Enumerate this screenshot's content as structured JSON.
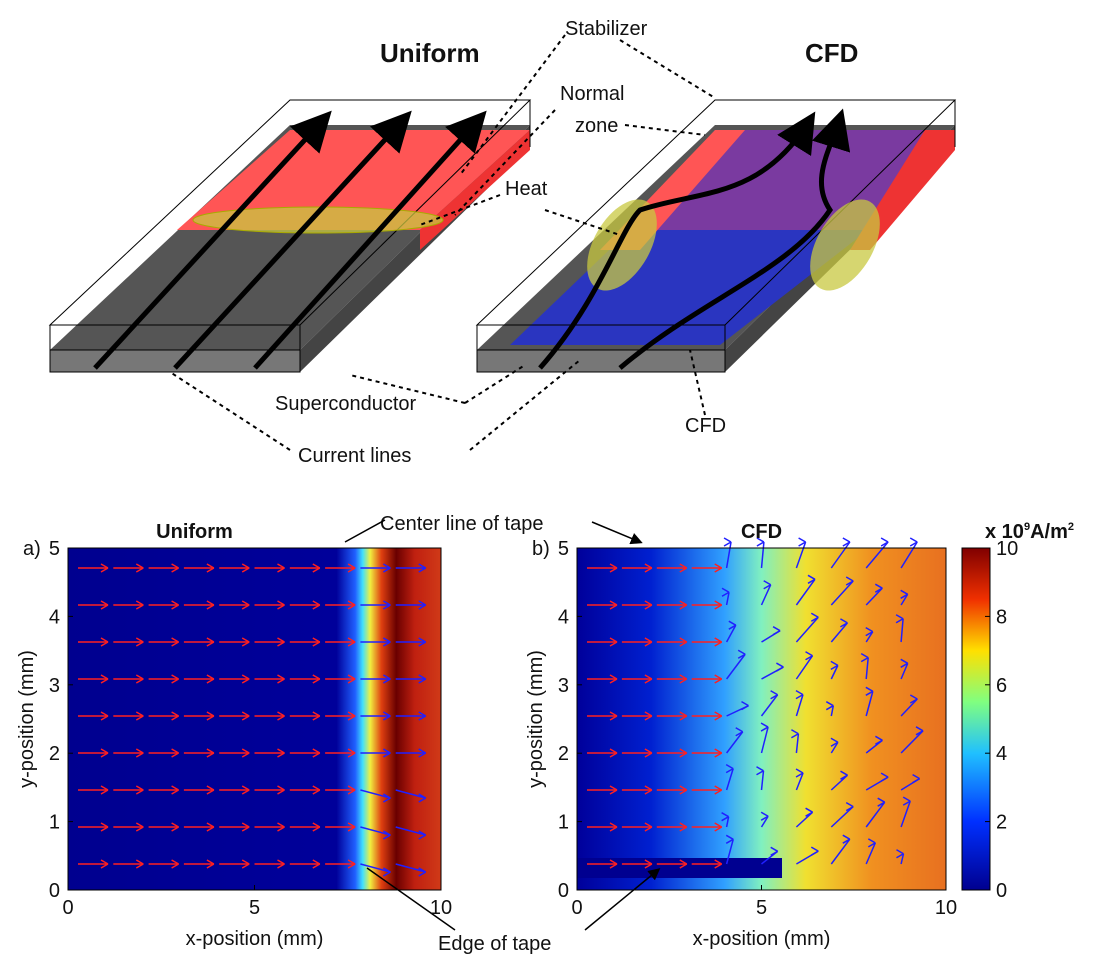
{
  "diagram": {
    "titles": [
      "Uniform",
      "CFD"
    ],
    "labels": {
      "stabilizer": "Stabilizer",
      "normal_zone": [
        "Normal",
        "zone"
      ],
      "heat": "Heat",
      "superconductor": "Superconductor",
      "current_lines": "Current lines",
      "cfd": "CFD"
    }
  },
  "annotations": {
    "center_line": "Center line of tape",
    "edge": "Edge of tape"
  },
  "chart_data": [
    {
      "type": "heatmap",
      "title": "Uniform",
      "panel_label": "a)",
      "x_label": "x-position (mm)",
      "y_label": "y-position (mm)",
      "xlim": [
        0,
        10
      ],
      "ylim": [
        0,
        5
      ],
      "xticks": [
        0,
        5,
        10
      ],
      "yticks": [
        0,
        1,
        2,
        3,
        4,
        5
      ]
    },
    {
      "type": "heatmap",
      "title": "CFD",
      "panel_label": "b)",
      "x_label": "x-position (mm)",
      "y_label": "y-position (mm)",
      "xlim": [
        0,
        10
      ],
      "ylim": [
        0,
        5
      ],
      "xticks": [
        0,
        5,
        10
      ],
      "yticks": [
        0,
        1,
        2,
        3,
        4,
        5
      ],
      "colorbar": {
        "label": [
          "x 10",
          "9",
          "A/m",
          "2"
        ],
        "lim": [
          0,
          10
        ],
        "ticks": [
          0,
          2,
          4,
          6,
          8,
          10
        ]
      }
    }
  ]
}
